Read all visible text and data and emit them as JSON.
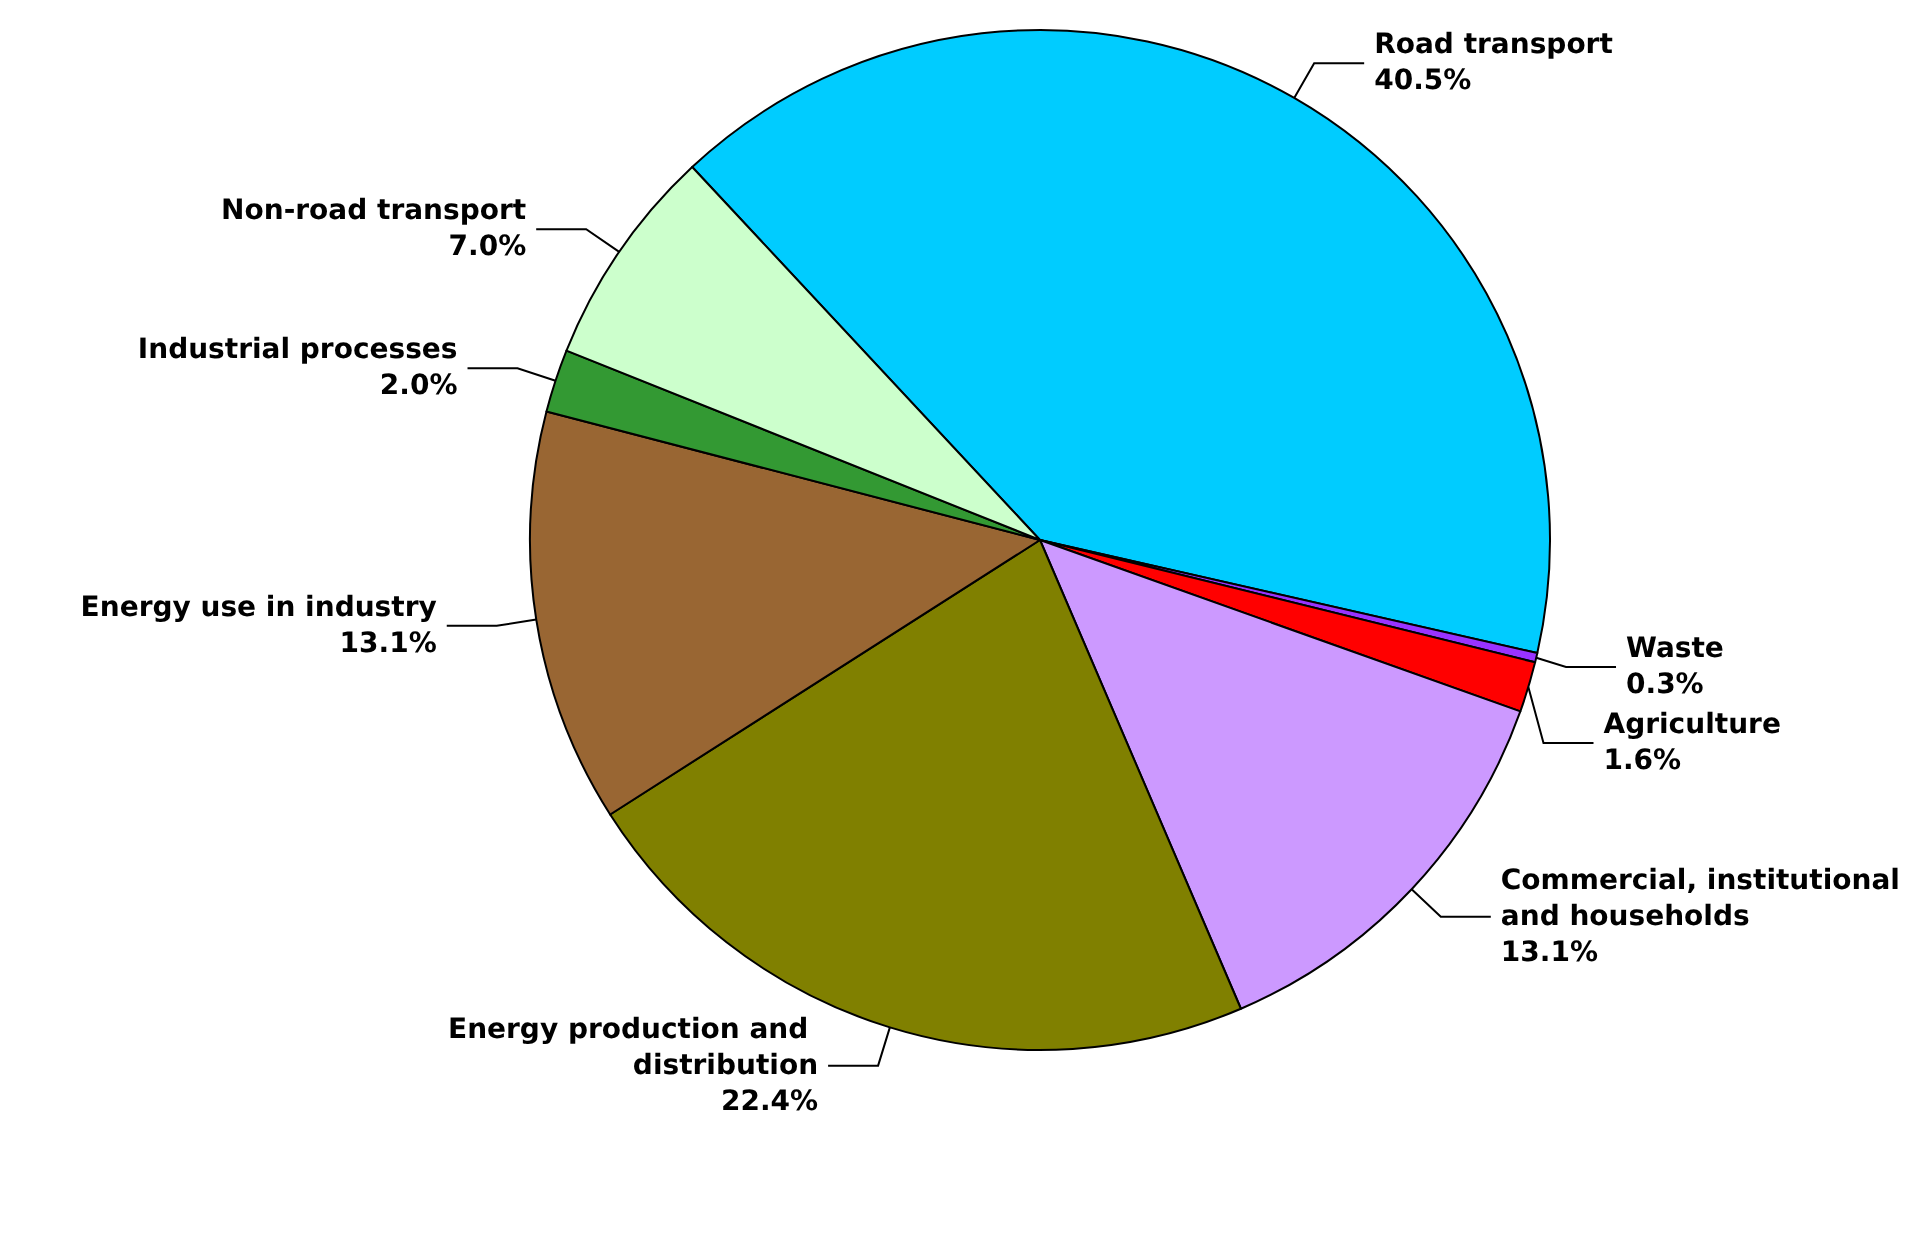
{
  "chart_data": {
    "type": "pie",
    "categories": [
      "Road transport",
      "Waste",
      "Agriculture",
      "Commercial, institutional and households",
      "Energy production and distribution",
      "Energy use in industry",
      "Industrial processes",
      "Non-road transport"
    ],
    "values": [
      40.5,
      0.3,
      1.6,
      13.1,
      22.4,
      13.1,
      2.0,
      7.0
    ],
    "value_labels": [
      "40.5%",
      "0.3%",
      "1.6%",
      "13.1%",
      "22.4%",
      "13.1%",
      "2.0%",
      "7.0%"
    ],
    "colors": [
      "#00ccff",
      "#9933ff",
      "#ff0000",
      "#cc99ff",
      "#808000",
      "#996633",
      "#339933",
      "#ccffcc"
    ],
    "legend": false
  }
}
